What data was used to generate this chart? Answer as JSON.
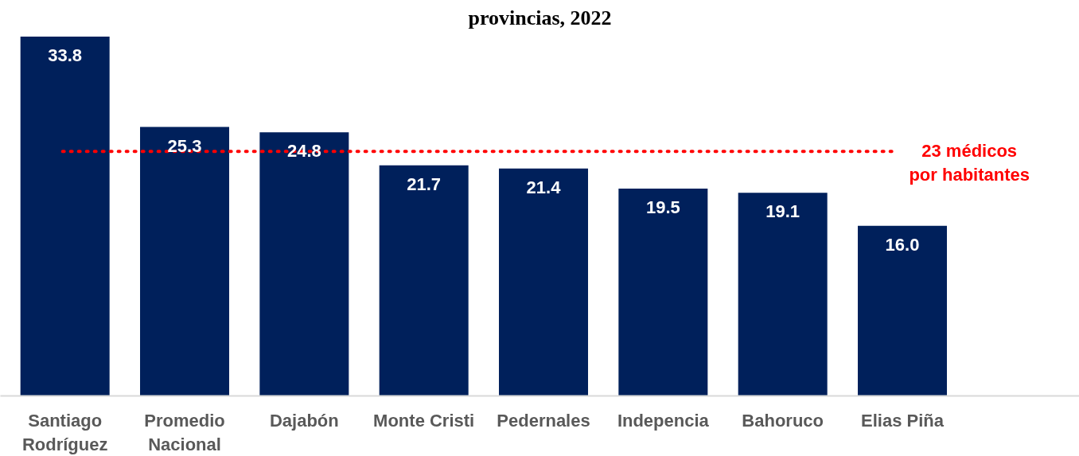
{
  "chart_data": {
    "type": "bar",
    "title": "provincias, 2022",
    "categories": [
      "Santiago\nRodríguez",
      "Promedio\nNacional",
      "Dajabón",
      "Monte Cristi",
      "Pedernales",
      "Indepencia",
      "Bahoruco",
      "Elias Piña"
    ],
    "values": [
      33.8,
      25.3,
      24.8,
      21.7,
      21.4,
      19.5,
      19.1,
      16.0
    ],
    "color": "#00205b",
    "value_labels": [
      "33.8",
      "25.3",
      "24.8",
      "21.7",
      "21.4",
      "19.5",
      "19.1",
      "16.0"
    ],
    "grid": false,
    "ref_lines": [
      {
        "axis": "y",
        "value": 23,
        "label": "23 médicos\npor habitantes",
        "color": "#ff0000",
        "line_style": "dotted"
      }
    ]
  }
}
